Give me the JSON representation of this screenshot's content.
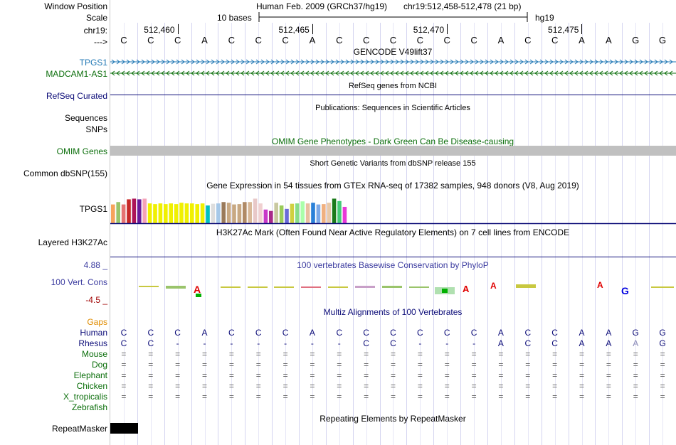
{
  "header": {
    "window_position_label": "Window Position",
    "scale_label": "Scale",
    "chrom_label": "chr19:",
    "arrow_label": "--->",
    "assembly": "Human Feb. 2009 (GRCh37/hg19)",
    "position": "chr19:512,458-512,478 (21 bp)",
    "scale_text": "10 bases",
    "db": "hg19",
    "ticks": [
      "512,460",
      "512,465",
      "512,470",
      "512,475"
    ]
  },
  "sequence": [
    "C",
    "C",
    "C",
    "A",
    "C",
    "C",
    "C",
    "A",
    "C",
    "C",
    "C",
    "C",
    "C",
    "C",
    "A",
    "C",
    "C",
    "A",
    "A",
    "G",
    "G"
  ],
  "tracks": {
    "gencode": {
      "title": "GENCODE V49lift37",
      "gene1": "TPGS1",
      "gene2": "MADCAM1-AS1",
      "color1": "#1f77b4",
      "color2": "#0b6e0b"
    },
    "refseq": {
      "label": "RefSeq Curated",
      "title": "RefSeq genes from NCBI",
      "color": "#0c0c78"
    },
    "publications": {
      "title": "Publications: Sequences in Scientific Articles",
      "label1": "Sequences",
      "label2": "SNPs"
    },
    "omim": {
      "label": "OMIM Genes",
      "title": "OMIM Gene Phenotypes - Dark Green Can Be Disease-causing",
      "color": "#0b6e0b"
    },
    "dbsnp": {
      "label": "Common dbSNP(155)",
      "title": "Short Genetic Variants from dbSNP release 155"
    },
    "gtex": {
      "label": "TPGS1",
      "title": "Gene Expression in 54 tissues from GTEx RNA-seq of 17382 samples, 948 donors (V8, Aug 2019)"
    },
    "h3k27ac": {
      "label": "Layered H3K27Ac",
      "title": "H3K27Ac Mark (Often Found Near Active Regulatory Elements) on 7 cell lines from ENCODE"
    },
    "phylop": {
      "label": "100 Vert. Cons",
      "title": "100 vertebrates Basewise Conservation by PhyloP",
      "max": "4.88 _",
      "min": "-4.5 _",
      "color": "#3c3ca0"
    },
    "multiz": {
      "title": "Multiz Alignments of 100 Vertebrates",
      "gaps_label": "Gaps",
      "species": [
        {
          "name": "Human",
          "seq": [
            "C",
            "C",
            "C",
            "A",
            "C",
            "C",
            "C",
            "A",
            "C",
            "C",
            "C",
            "C",
            "C",
            "C",
            "A",
            "C",
            "C",
            "A",
            "A",
            "G",
            "G"
          ]
        },
        {
          "name": "Rhesus",
          "seq": [
            "C",
            "C",
            "-",
            "-",
            "-",
            "-",
            "-",
            "-",
            "-",
            "C",
            "C",
            "-",
            "-",
            "-",
            "A",
            "C",
            "C",
            "A",
            "A",
            "A",
            "G"
          ]
        },
        {
          "name": "Mouse",
          "seq": [
            "=",
            "=",
            "=",
            "=",
            "=",
            "=",
            "=",
            "=",
            "=",
            "=",
            "=",
            "=",
            "=",
            "=",
            "=",
            "=",
            "=",
            "=",
            "=",
            "=",
            "="
          ]
        },
        {
          "name": "Dog",
          "seq": [
            "=",
            "=",
            "=",
            "=",
            "=",
            "=",
            "=",
            "=",
            "=",
            "=",
            "=",
            "=",
            "=",
            "=",
            "=",
            "=",
            "=",
            "=",
            "=",
            "=",
            "="
          ]
        },
        {
          "name": "Elephant",
          "seq": [
            "=",
            "=",
            "=",
            "=",
            "=",
            "=",
            "=",
            "=",
            "=",
            "=",
            "=",
            "=",
            "=",
            "=",
            "=",
            "=",
            "=",
            "=",
            "=",
            "=",
            "="
          ]
        },
        {
          "name": "Chicken",
          "seq": [
            "=",
            "=",
            "=",
            "=",
            "=",
            "=",
            "=",
            "=",
            "=",
            "=",
            "=",
            "=",
            "=",
            "=",
            "=",
            "=",
            "=",
            "=",
            "=",
            "=",
            "="
          ]
        },
        {
          "name": "X_tropicalis",
          "seq": [
            "=",
            "=",
            "=",
            "=",
            "=",
            "=",
            "=",
            "=",
            "=",
            "=",
            "=",
            "=",
            "=",
            "=",
            "=",
            "=",
            "=",
            "=",
            "=",
            "=",
            "="
          ]
        },
        {
          "name": "Zebrafish",
          "seq": []
        }
      ]
    },
    "repeatmasker": {
      "label": "RepeatMasker",
      "title": "Repeating Elements by RepeatMasker"
    }
  },
  "colors": {
    "navy": "#0c0c78",
    "green": "#0b6e0b",
    "orange": "#e08c00",
    "gtex_bars": [
      "#f7a35c",
      "#9ac46b",
      "#e57373",
      "#c62828",
      "#ad1457",
      "#6a1b9a",
      "#f5a3b8",
      "#f0f000",
      "#f0f000",
      "#f0f000",
      "#f0f000",
      "#f0f000",
      "#f0f000",
      "#f0f000",
      "#f0f000",
      "#f0f000",
      "#f0f000",
      "#f0f000",
      "#00c0c0",
      "#dddddd",
      "#a6c8e8",
      "#9a7a5a",
      "#c8a882",
      "#c8a882",
      "#c8a882",
      "#b08a66",
      "#d8b898",
      "#e8c8c8",
      "#f0d0d0",
      "#c838c8",
      "#a82a8a",
      "#c8c8a0",
      "#9acc5a",
      "#6a6ad8",
      "#d0d040",
      "#88dd88",
      "#aaffaa",
      "#e8c0a0",
      "#2a80d8",
      "#7aa8e8",
      "#f0b080",
      "#e8c8a8",
      "#1a7a1a",
      "#44cc77",
      "#e838d8"
    ],
    "gtex_values": [
      0.55,
      0.62,
      0.55,
      0.7,
      0.72,
      0.7,
      0.72,
      0.58,
      0.56,
      0.58,
      0.56,
      0.58,
      0.56,
      0.6,
      0.58,
      0.58,
      0.56,
      0.58,
      0.52,
      0.57,
      0.58,
      0.62,
      0.6,
      0.55,
      0.56,
      0.62,
      0.62,
      0.72,
      0.58,
      0.4,
      0.36,
      0.6,
      0.52,
      0.42,
      0.57,
      0.58,
      0.64,
      0.58,
      0.6,
      0.55,
      0.56,
      0.6,
      0.72,
      0.65,
      0.48
    ]
  }
}
